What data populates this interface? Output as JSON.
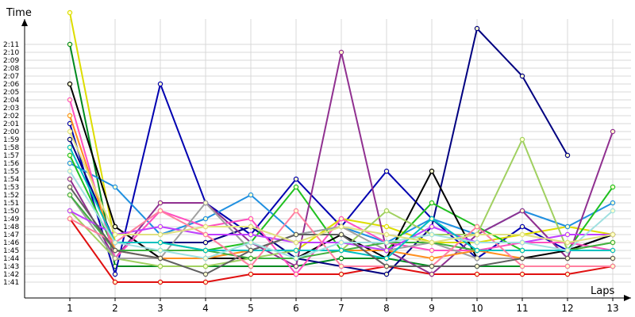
{
  "chart_data": {
    "type": "line",
    "title": "",
    "xlabel": "Laps",
    "ylabel": "Time",
    "xlim": [
      1,
      13
    ],
    "ylim": [
      "1:41",
      "2:11"
    ],
    "x": [
      1,
      2,
      3,
      4,
      5,
      6,
      7,
      8,
      9,
      10,
      11,
      12,
      13
    ],
    "x_tick_labels": [
      "1",
      "2",
      "3",
      "4",
      "5",
      "6",
      "7",
      "8",
      "9",
      "10",
      "11",
      "12",
      "13"
    ],
    "y_tick_labels": [
      "1:41",
      "1:42",
      "1:43",
      "1:44",
      "1:45",
      "1:46",
      "1:47",
      "1:48",
      "1:49",
      "1:50",
      "1:51",
      "1:52",
      "1:53",
      "1:54",
      "1:55",
      "1:56",
      "1:57",
      "1:58",
      "1:59",
      "2:00",
      "2:01",
      "2:02",
      "2:03",
      "2:04",
      "2:05",
      "2:06",
      "2:07",
      "2:08",
      "2:09",
      "2:10",
      "2:11"
    ],
    "grid": true,
    "legend": "none",
    "series": [
      {
        "color": "#e01010",
        "values": [
          "1:49",
          "1:41",
          "1:41",
          "1:41",
          "1:42",
          "1:42",
          "1:42",
          "1:43",
          "1:42",
          "1:42",
          "1:42",
          "1:42",
          "1:43"
        ]
      },
      {
        "color": "#008a20",
        "values": [
          "2:11",
          "1:43",
          "1:43",
          "1:43",
          "1:43",
          "1:43",
          "1:44",
          "1:44",
          "1:43",
          "1:43",
          "1:43",
          "1:43",
          "1:43"
        ]
      },
      {
        "color": "#0000b0",
        "values": [
          "2:01",
          "1:42",
          "2:06",
          "1:51",
          "1:47",
          "1:54",
          "1:48",
          "1:55",
          "1:49",
          "1:44",
          "1:48",
          "1:45",
          "1:47"
        ]
      },
      {
        "color": "#000080",
        "values": [
          "1:59",
          "1:46",
          "1:46",
          "1:46",
          "1:48",
          "1:44",
          "1:43",
          "1:42",
          "1:48",
          "2:13",
          "2:07",
          "1:57",
          null
        ]
      },
      {
        "color": "#dddd00",
        "values": [
          "2:15",
          "1:46",
          "1:46",
          "1:45",
          "1:45",
          "1:45",
          "1:49",
          "1:48",
          "1:46",
          "1:46",
          "1:47",
          "1:48",
          "1:47"
        ]
      },
      {
        "color": "#2090e0",
        "values": [
          "1:56",
          "1:53",
          "1:47",
          "1:49",
          "1:52",
          "1:47",
          "1:48",
          "1:46",
          "1:49",
          "1:47",
          "1:50",
          "1:48",
          "1:51"
        ]
      },
      {
        "color": "#20c020",
        "values": [
          "1:57",
          "1:45",
          "1:45",
          "1:45",
          "1:46",
          "1:53",
          "1:45",
          "1:45",
          "1:51",
          "1:48",
          "1:45",
          "1:45",
          "1:53"
        ]
      },
      {
        "color": "#903090",
        "values": [
          "1:54",
          "1:44",
          "1:51",
          "1:51",
          "1:46",
          "1:43",
          "2:10",
          "1:45",
          "1:42",
          "1:47",
          "1:50",
          "1:44",
          "2:00"
        ]
      },
      {
        "color": "#000000",
        "values": [
          "2:06",
          "1:48",
          "1:44",
          "1:44",
          "1:44",
          "1:44",
          "1:47",
          "1:44",
          "1:55",
          "1:44",
          "1:44",
          "1:45",
          "1:47"
        ]
      },
      {
        "color": "#a0d060",
        "values": [
          "1:50",
          "1:44",
          "1:43",
          "1:43",
          "1:44",
          "1:45",
          "1:45",
          "1:50",
          "1:47",
          "1:47",
          "1:59",
          "1:45",
          "1:46"
        ]
      },
      {
        "color": "#ff50c0",
        "values": [
          "2:04",
          "1:44",
          "1:50",
          "1:48",
          "1:49",
          "1:42",
          "1:49",
          "1:46",
          "1:45",
          "1:45",
          "1:46",
          "1:46",
          "1:45"
        ]
      },
      {
        "color": "#a0a0a0",
        "values": [
          "1:52",
          "1:44",
          "1:44",
          "1:51",
          "1:45",
          "1:47",
          "1:48",
          "1:45",
          "1:46",
          "1:44",
          "1:44",
          "1:44",
          "1:44"
        ]
      },
      {
        "color": "#ff9020",
        "values": [
          "2:02",
          "1:45",
          "1:44",
          "1:44",
          "1:45",
          "1:45",
          "1:45",
          "1:45",
          "1:44",
          "1:45",
          "1:44",
          "1:44",
          "1:44"
        ]
      },
      {
        "color": "#40b040",
        "values": [
          "1:52",
          "1:45",
          "1:45",
          "1:45",
          "1:44",
          "1:44",
          "1:45",
          "1:46",
          "1:46",
          "1:45",
          "1:45",
          "1:45",
          "1:46"
        ]
      },
      {
        "color": "#c040ff",
        "values": [
          "1:50",
          "1:47",
          "1:48",
          "1:47",
          "1:47",
          "1:46",
          "1:46",
          "1:45",
          "1:48",
          "1:46",
          "1:46",
          "1:47",
          "1:47"
        ]
      },
      {
        "color": "#00c0c0",
        "values": [
          "1:58",
          "1:46",
          "1:46",
          "1:45",
          "1:45",
          "1:45",
          "1:45",
          "1:44",
          "1:49",
          "1:45",
          "1:45",
          "1:45",
          "1:45"
        ]
      },
      {
        "color": "#ff80a0",
        "values": [
          "1:49",
          "1:46",
          "1:50",
          "1:47",
          "1:43",
          "1:50",
          "1:43",
          "1:43",
          "1:43",
          "1:48",
          "1:43",
          "1:43",
          "1:43"
        ]
      },
      {
        "color": "#606060",
        "values": [
          "1:53",
          "1:45",
          "1:44",
          "1:42",
          "1:45",
          "1:47",
          "1:47",
          "1:43",
          "1:43",
          "1:43",
          "1:44",
          "1:44",
          "1:44"
        ]
      },
      {
        "color": "#a0e0e0",
        "values": [
          "1:55",
          "1:46",
          "1:45",
          "1:44",
          "1:46",
          "1:44",
          "1:46",
          "1:46",
          "1:47",
          "1:46",
          "1:46",
          "1:45",
          "1:50"
        ]
      },
      {
        "color": "#e0e080",
        "values": [
          "2:00",
          "1:47",
          "1:47",
          "1:48",
          "1:48",
          "1:46",
          "1:48",
          "1:47",
          "1:46",
          "1:47",
          "1:47",
          "1:46",
          "1:47"
        ]
      }
    ]
  }
}
